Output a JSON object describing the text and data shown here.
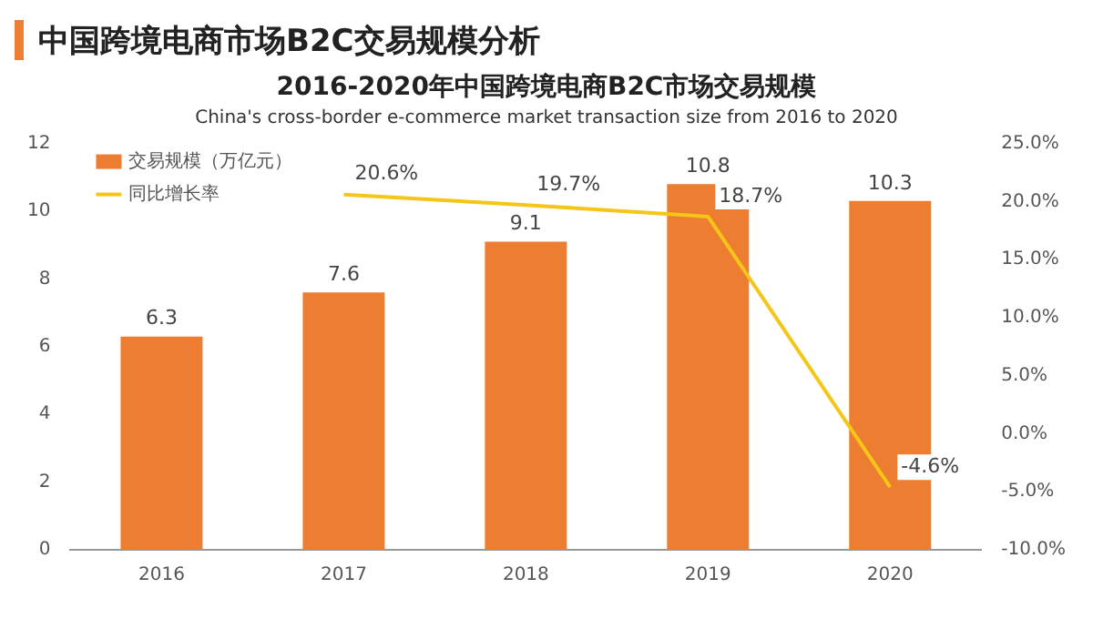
{
  "chart_data": {
    "type": "bar",
    "title": "2016-2020年中国跨境电商B2C市场交易规模",
    "subtitle": "China's cross-border e-commerce market transaction size from 2016 to 2020",
    "annotations": [
      "中国跨境电商市场B2C交易规模分析"
    ],
    "categories": [
      "2016",
      "2017",
      "2018",
      "2019",
      "2020"
    ],
    "series": [
      {
        "name": "交易规模（万亿元）",
        "color": "#ed7d31",
        "values": [
          6.3,
          7.6,
          9.1,
          10.8,
          10.3
        ],
        "value_labels": [
          "6.3",
          "7.6",
          "9.1",
          "10.8",
          "10.3"
        ]
      },
      {
        "name": "同比增长率",
        "type": "line",
        "axis": "y2",
        "color": "#f5c518",
        "values": [
          null,
          20.6,
          19.7,
          18.7,
          -4.6
        ],
        "value_labels": [
          null,
          "20.6%",
          "19.7%",
          "18.7%",
          "-4.6%"
        ]
      }
    ],
    "ylim": [
      0,
      12
    ],
    "yticks": [
      0,
      2,
      4,
      6,
      8,
      10,
      12
    ],
    "y2lim": [
      -10,
      25
    ],
    "y2ticks": [
      {
        "value": -10,
        "label": "-10.0%"
      },
      {
        "value": -5,
        "label": "-5.0%"
      },
      {
        "value": 0,
        "label": "0.0%"
      },
      {
        "value": 5,
        "label": "5.0%"
      },
      {
        "value": 10,
        "label": "10.0%"
      },
      {
        "value": 15,
        "label": "15.0%"
      },
      {
        "value": 20,
        "label": "20.0%"
      },
      {
        "value": 25,
        "label": "25.0%"
      }
    ],
    "legend": "top left",
    "marker": "none",
    "grid": false
  }
}
